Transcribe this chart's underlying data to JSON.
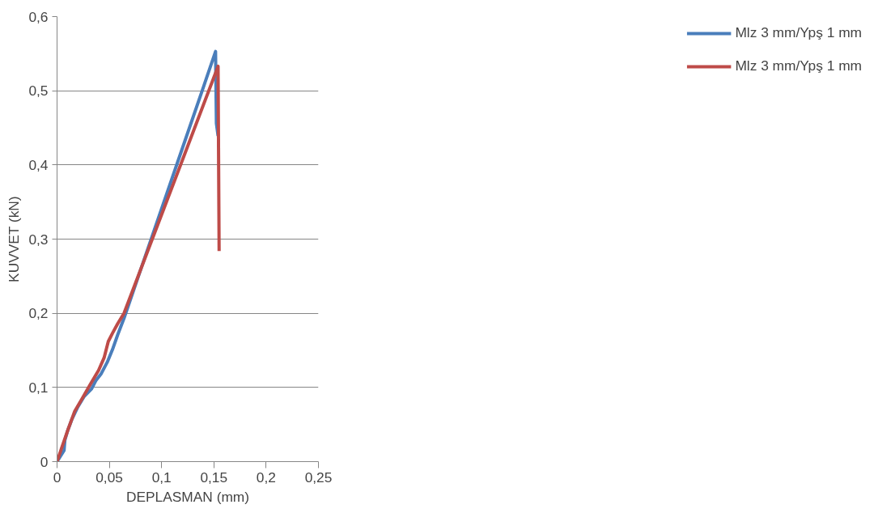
{
  "chart_data": {
    "type": "line",
    "xlabel": "DEPLASMAN (mm)",
    "ylabel": "KUVVET (kN)",
    "xlim": [
      0,
      0.25
    ],
    "ylim": [
      0,
      0.6
    ],
    "xticks": [
      0,
      {
        "value": 0.05,
        "label": "0,05"
      },
      {
        "value": 0.1,
        "label": "0,1"
      },
      {
        "value": 0.15,
        "label": "0,15"
      },
      {
        "value": 0.2,
        "label": "0,2"
      },
      {
        "value": 0.25,
        "label": "0,25"
      }
    ],
    "yticks": [
      0,
      {
        "value": 0.1,
        "label": "0,1"
      },
      {
        "value": 0.2,
        "label": "0,2"
      },
      {
        "value": 0.3,
        "label": "0,3"
      },
      {
        "value": 0.4,
        "label": "0,4"
      },
      {
        "value": 0.5,
        "label": "0,5"
      },
      {
        "value": 0.6,
        "label": "0,6"
      }
    ],
    "grid": "y",
    "legend": "right",
    "marker": "none",
    "line_style": "solid",
    "series": [
      {
        "name": "Mlz 3 mm/Ypş 1 mm",
        "color": "#4a7ebb",
        "x": [
          0,
          0.0067,
          0.0075,
          0.0102,
          0.0142,
          0.0196,
          0.026,
          0.033,
          0.037,
          0.042,
          0.048,
          0.053,
          0.058,
          0.064,
          0.08,
          0.1,
          0.12,
          0.14,
          0.1516,
          0.1524,
          0.154
        ],
        "values": [
          0,
          0.015,
          0.029,
          0.042,
          0.057,
          0.073,
          0.088,
          0.098,
          0.109,
          0.118,
          0.134,
          0.151,
          0.171,
          0.193,
          0.259,
          0.341,
          0.423,
          0.505,
          0.553,
          0.456,
          0.439
        ]
      },
      {
        "name": "Mlz 3 mm/Ypş 1 mm",
        "color": "#be4b48",
        "x": [
          0,
          0.0048,
          0.0102,
          0.0169,
          0.0236,
          0.0317,
          0.0397,
          0.045,
          0.049,
          0.053,
          0.058,
          0.064,
          0.08,
          0.1,
          0.12,
          0.14,
          0.154,
          0.155
        ],
        "values": [
          0,
          0.02,
          0.042,
          0.068,
          0.084,
          0.104,
          0.123,
          0.14,
          0.162,
          0.173,
          0.186,
          0.2,
          0.259,
          0.333,
          0.407,
          0.481,
          0.533,
          0.284
        ]
      }
    ]
  }
}
